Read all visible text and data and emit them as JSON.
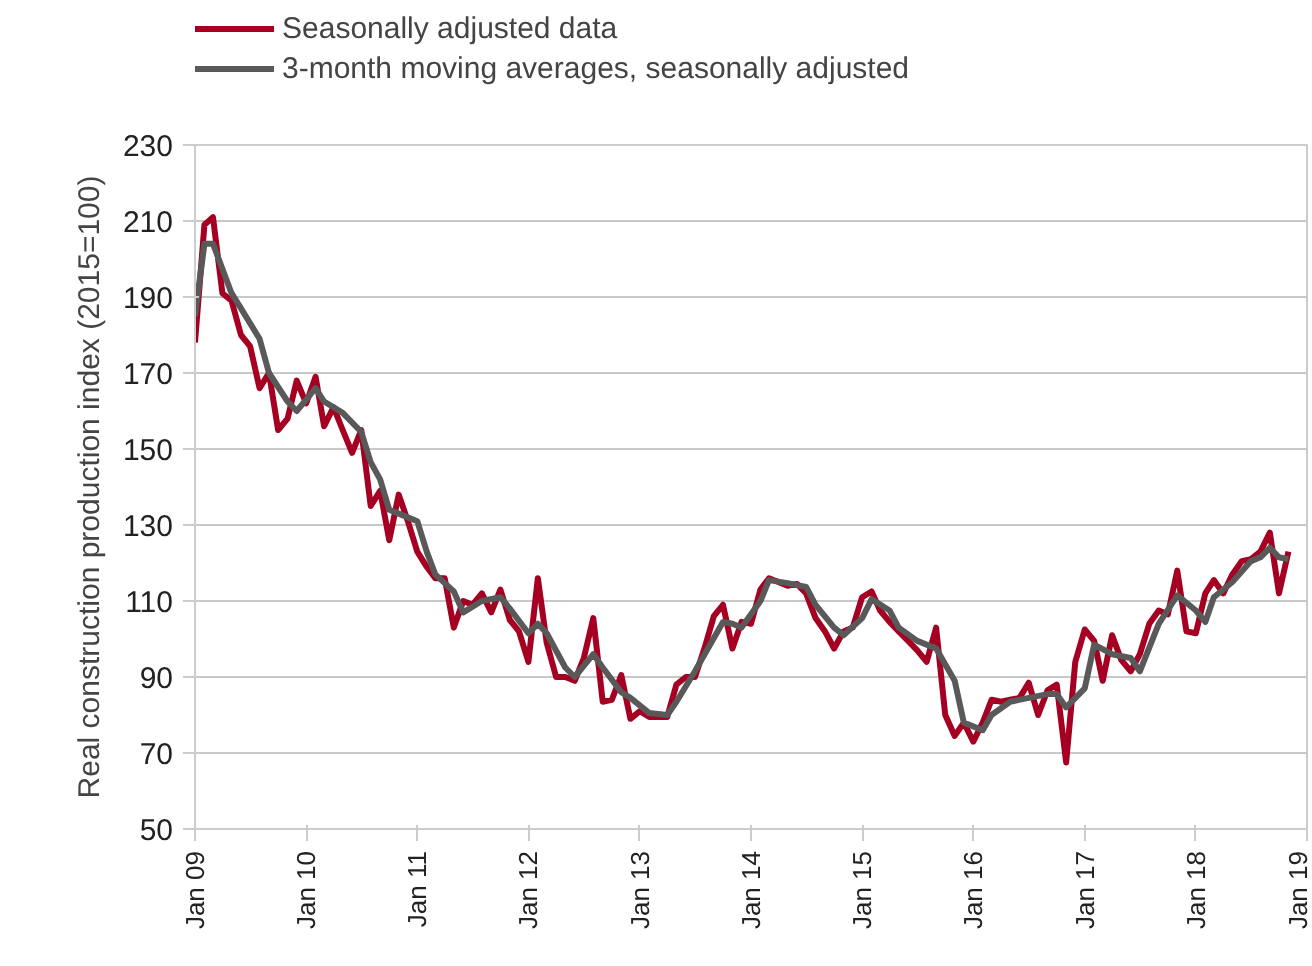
{
  "chart_data": {
    "type": "line",
    "ylabel": "Real construction production index (2015=100)",
    "xlim": [
      "2009-01",
      "2019-01"
    ],
    "xticks": [
      {
        "value": "2009-01",
        "label": "Jan 09"
      },
      {
        "value": "2010-01",
        "label": "Jan 10"
      },
      {
        "value": "2011-01",
        "label": "Jan 11"
      },
      {
        "value": "2012-01",
        "label": "Jan 12"
      },
      {
        "value": "2013-01",
        "label": "Jan 13"
      },
      {
        "value": "2014-01",
        "label": "Jan 14"
      },
      {
        "value": "2015-01",
        "label": "Jan 15"
      },
      {
        "value": "2016-01",
        "label": "Jan 16"
      },
      {
        "value": "2017-01",
        "label": "Jan 17"
      },
      {
        "value": "2018-01",
        "label": "Jan 18"
      },
      {
        "value": "2019-01",
        "label": "Jan 19"
      }
    ],
    "ylim": [
      50,
      230
    ],
    "yticks": [
      50,
      70,
      90,
      110,
      130,
      150,
      170,
      190,
      210,
      230
    ],
    "grid": "y",
    "legend": "top",
    "line_style": "solid",
    "series": [
      {
        "name": "Seasonally adjusted data",
        "color": "#a50021",
        "x": [
          "2009-01",
          "2009-02",
          "2009-03",
          "2009-04",
          "2009-05",
          "2009-06",
          "2009-07",
          "2009-08",
          "2009-09",
          "2009-10",
          "2009-11",
          "2009-12",
          "2010-01",
          "2010-02",
          "2010-03",
          "2010-04",
          "2010-05",
          "2010-06",
          "2010-07",
          "2010-08",
          "2010-09",
          "2010-10",
          "2010-11",
          "2010-12",
          "2011-01",
          "2011-02",
          "2011-03",
          "2011-04",
          "2011-05",
          "2011-06",
          "2011-07",
          "2011-08",
          "2011-09",
          "2011-10",
          "2011-11",
          "2011-12",
          "2012-01",
          "2012-02",
          "2012-03",
          "2012-04",
          "2012-05",
          "2012-06",
          "2012-07",
          "2012-08",
          "2012-09",
          "2012-10",
          "2012-11",
          "2012-12",
          "2013-01",
          "2013-02",
          "2013-03",
          "2013-04",
          "2013-05",
          "2013-06",
          "2013-07",
          "2013-08",
          "2013-09",
          "2013-10",
          "2013-11",
          "2013-12",
          "2014-01",
          "2014-02",
          "2014-03",
          "2014-04",
          "2014-05",
          "2014-06",
          "2014-07",
          "2014-08",
          "2014-09",
          "2014-10",
          "2014-11",
          "2014-12",
          "2015-01",
          "2015-02",
          "2015-03",
          "2015-04",
          "2015-05",
          "2015-06",
          "2015-07",
          "2015-08",
          "2015-09",
          "2015-10",
          "2015-11",
          "2015-12",
          "2016-01",
          "2016-02",
          "2016-03",
          "2016-04",
          "2016-05",
          "2016-06",
          "2016-07",
          "2016-08",
          "2016-09",
          "2016-10",
          "2016-11",
          "2016-12",
          "2017-01",
          "2017-02",
          "2017-03",
          "2017-04",
          "2017-05",
          "2017-06",
          "2017-07",
          "2017-08",
          "2017-09",
          "2017-10",
          "2017-11",
          "2017-12",
          "2018-01",
          "2018-02",
          "2018-03",
          "2018-04",
          "2018-05",
          "2018-06",
          "2018-07",
          "2018-08",
          "2018-09",
          "2018-10",
          "2018-11"
        ],
        "values": [
          178,
          209,
          211,
          191,
          189,
          180,
          177,
          166,
          170,
          155,
          158,
          168,
          162,
          169,
          156,
          161,
          155,
          149,
          155,
          135,
          139,
          126,
          138,
          131,
          123,
          119,
          116,
          116,
          103,
          110,
          109,
          112,
          107,
          113,
          105,
          102,
          94,
          116,
          99,
          90,
          90,
          89,
          95,
          105.5,
          83.5,
          84,
          90.5,
          79,
          81,
          79.5,
          79.5,
          79.5,
          88,
          90,
          90,
          97.5,
          106,
          109,
          97.5,
          104.5,
          104,
          113,
          116,
          115,
          114,
          114.5,
          112,
          105.5,
          102,
          97.5,
          102,
          103,
          111,
          112.5,
          107.5,
          104.5,
          102,
          99.5,
          97,
          94,
          103,
          80,
          74.5,
          78,
          73,
          78,
          84,
          83.5,
          84,
          84.5,
          88.5,
          80,
          86.5,
          88,
          67.5,
          94,
          102.5,
          99.5,
          89,
          101,
          94.5,
          91.5,
          96,
          104,
          107.5,
          106.5,
          118,
          102,
          101.5,
          112,
          115.5,
          112,
          117,
          120.5,
          121,
          123,
          128,
          112,
          123
        ]
      },
      {
        "name": "3-month moving averages, seasonally adjusted",
        "color": "#595959",
        "x": [
          "2009-01",
          "2009-02",
          "2009-03",
          "2009-05",
          "2009-06",
          "2009-08",
          "2009-09",
          "2009-11",
          "2009-12",
          "2010-01",
          "2010-02",
          "2010-03",
          "2010-05",
          "2010-07",
          "2010-08",
          "2010-09",
          "2010-10",
          "2010-11",
          "2011-01",
          "2011-02",
          "2011-03",
          "2011-05",
          "2011-06",
          "2011-08",
          "2011-10",
          "2011-11",
          "2012-01",
          "2012-02",
          "2012-03",
          "2012-05",
          "2012-06",
          "2012-08",
          "2012-09",
          "2012-11",
          "2012-12",
          "2013-02",
          "2013-04",
          "2013-05",
          "2013-07",
          "2013-10",
          "2013-11",
          "2013-12",
          "2014-02",
          "2014-03",
          "2014-05",
          "2014-07",
          "2014-08",
          "2014-10",
          "2014-11",
          "2015-01",
          "2015-02",
          "2015-04",
          "2015-05",
          "2015-07",
          "2015-09",
          "2015-11",
          "2015-12",
          "2016-02",
          "2016-03",
          "2016-05",
          "2016-07",
          "2016-09",
          "2016-10",
          "2016-11",
          "2017-01",
          "2017-02",
          "2017-04",
          "2017-06",
          "2017-07",
          "2017-09",
          "2017-11",
          "2018-01",
          "2018-02",
          "2018-03",
          "2018-05",
          "2018-07",
          "2018-08",
          "2018-09",
          "2018-10",
          "2018-11"
        ],
        "values": [
          185,
          204,
          204,
          191,
          187,
          179,
          170,
          162.5,
          160,
          163,
          166,
          162.5,
          159.5,
          154.5,
          146.5,
          142,
          134,
          133,
          131,
          123,
          117,
          112.5,
          107,
          110,
          111,
          108,
          101.5,
          104,
          101.5,
          92.5,
          90,
          96,
          92.5,
          86,
          84.5,
          80.5,
          80,
          83.5,
          91.5,
          104.5,
          104,
          103,
          110,
          115.5,
          114.7,
          113.7,
          109,
          103,
          101,
          105.5,
          110.5,
          107.5,
          103,
          99.5,
          97.5,
          89,
          78,
          76,
          80,
          83.5,
          84.5,
          85.5,
          85.5,
          82,
          87,
          98.5,
          96,
          95,
          91.5,
          104,
          111.5,
          107.5,
          104.5,
          111,
          115,
          120.5,
          121.5,
          124,
          121.5,
          121
        ]
      }
    ]
  }
}
